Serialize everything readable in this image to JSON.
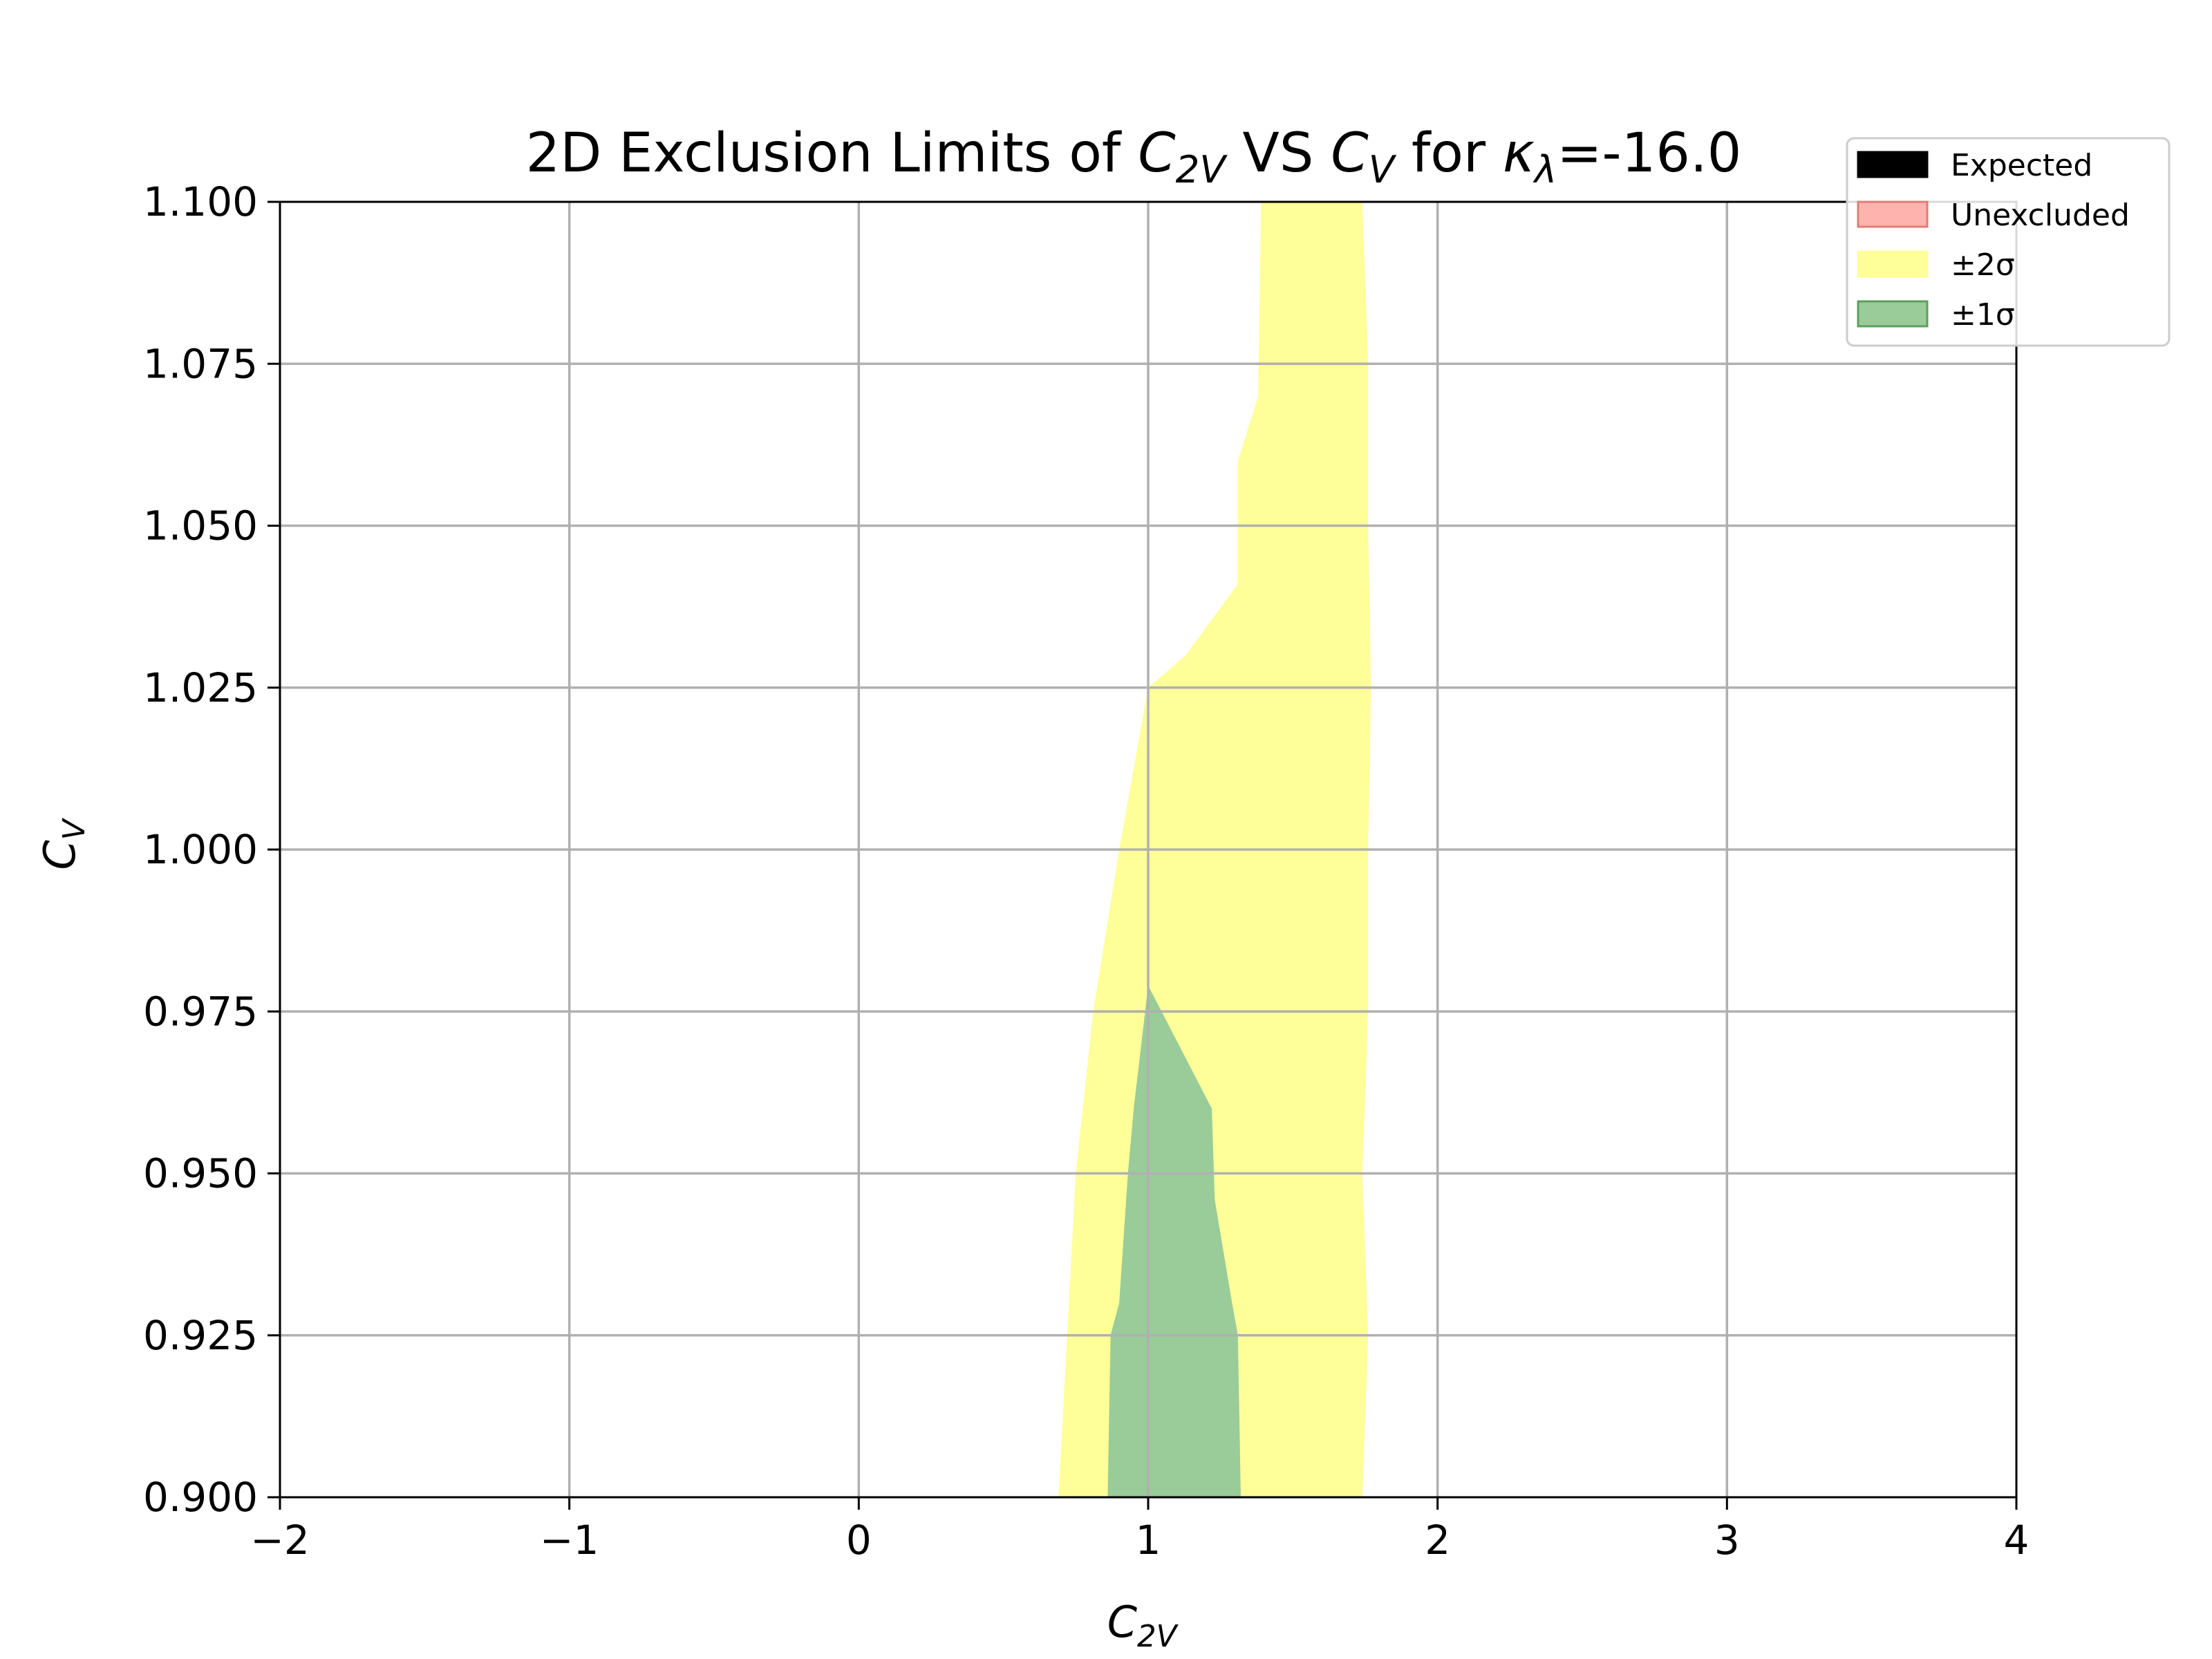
{
  "chart_data": {
    "type": "area",
    "title": {
      "prefix": "2D Exclusion Limits of ",
      "x_var": "C",
      "x_sub": "2V",
      "mid": " VS ",
      "y_var": "C",
      "y_sub": "V",
      "for_text": " for ",
      "kappa": "κ",
      "kappa_sub": "λ",
      "value": "=-16.0"
    },
    "xlabel": {
      "var": "C",
      "sub": "2V"
    },
    "ylabel": {
      "var": "C",
      "sub": "V"
    },
    "xlim": [
      -2,
      4
    ],
    "ylim": [
      0.9,
      1.1
    ],
    "x_ticks": [
      -2,
      -1,
      0,
      1,
      2,
      3,
      4
    ],
    "x_tick_labels": [
      "−2",
      "−1",
      "0",
      "1",
      "2",
      "3",
      "4"
    ],
    "y_ticks": [
      0.9,
      0.925,
      0.95,
      0.975,
      1.0,
      1.025,
      1.05,
      1.075,
      1.1
    ],
    "y_tick_labels": [
      "0.900",
      "0.925",
      "0.950",
      "0.975",
      "1.000",
      "1.025",
      "1.050",
      "1.075",
      "1.100"
    ],
    "grid": true,
    "legend_position": "top-right",
    "legend": [
      {
        "label": "Expected",
        "color": "#000000",
        "border": "#000000"
      },
      {
        "label": "Unexcluded",
        "color": "#ffb3ae",
        "border": "#e07c76"
      },
      {
        "label": "±2σ",
        "color": "#ffff99",
        "border": "#ffff99"
      },
      {
        "label": "±1σ",
        "color": "#99cc99",
        "border": "#5e9e5e"
      }
    ],
    "series": [
      {
        "name": "±2σ",
        "color": "#ffff99",
        "points": [
          [
            1.39,
            1.1
          ],
          [
            1.38,
            1.07
          ],
          [
            1.31,
            1.06
          ],
          [
            1.31,
            1.041
          ],
          [
            1.13,
            1.03
          ],
          [
            1.0,
            1.025
          ],
          [
            0.9,
            1.0
          ],
          [
            0.81,
            0.975
          ],
          [
            0.75,
            0.95
          ],
          [
            0.72,
            0.925
          ],
          [
            0.69,
            0.9
          ],
          [
            1.74,
            0.9
          ],
          [
            1.76,
            0.925
          ],
          [
            1.74,
            0.95
          ],
          [
            1.76,
            0.975
          ],
          [
            1.76,
            1.0
          ],
          [
            1.77,
            1.025
          ],
          [
            1.76,
            1.05
          ],
          [
            1.76,
            1.075
          ],
          [
            1.74,
            1.1
          ]
        ]
      },
      {
        "name": "±1σ",
        "color": "#99cc99",
        "points": [
          [
            1.0,
            0.979
          ],
          [
            0.95,
            0.96
          ],
          [
            0.93,
            0.95
          ],
          [
            0.9,
            0.93
          ],
          [
            0.87,
            0.925
          ],
          [
            0.86,
            0.9
          ],
          [
            1.32,
            0.9
          ],
          [
            1.31,
            0.925
          ],
          [
            1.29,
            0.93
          ],
          [
            1.23,
            0.946
          ],
          [
            1.22,
            0.96
          ]
        ]
      }
    ]
  }
}
